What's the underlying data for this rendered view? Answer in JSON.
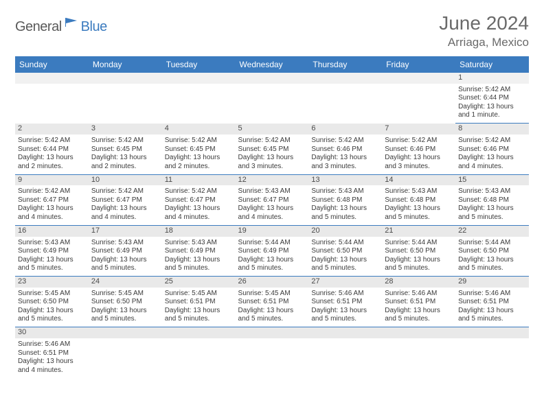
{
  "brand": {
    "part1": "General",
    "part2": "Blue"
  },
  "title": "June 2024",
  "location": "Arriaga, Mexico",
  "colors": {
    "header_bg": "#3b7bbf",
    "daynum_bg": "#e9e9e9",
    "border": "#3b7bbf"
  },
  "weekdays": [
    "Sunday",
    "Monday",
    "Tuesday",
    "Wednesday",
    "Thursday",
    "Friday",
    "Saturday"
  ],
  "weeks": [
    [
      null,
      null,
      null,
      null,
      null,
      null,
      {
        "n": "1",
        "sr": "Sunrise: 5:42 AM",
        "ss": "Sunset: 6:44 PM",
        "dl": "Daylight: 13 hours and 1 minute."
      }
    ],
    [
      {
        "n": "2",
        "sr": "Sunrise: 5:42 AM",
        "ss": "Sunset: 6:44 PM",
        "dl": "Daylight: 13 hours and 2 minutes."
      },
      {
        "n": "3",
        "sr": "Sunrise: 5:42 AM",
        "ss": "Sunset: 6:45 PM",
        "dl": "Daylight: 13 hours and 2 minutes."
      },
      {
        "n": "4",
        "sr": "Sunrise: 5:42 AM",
        "ss": "Sunset: 6:45 PM",
        "dl": "Daylight: 13 hours and 2 minutes."
      },
      {
        "n": "5",
        "sr": "Sunrise: 5:42 AM",
        "ss": "Sunset: 6:45 PM",
        "dl": "Daylight: 13 hours and 3 minutes."
      },
      {
        "n": "6",
        "sr": "Sunrise: 5:42 AM",
        "ss": "Sunset: 6:46 PM",
        "dl": "Daylight: 13 hours and 3 minutes."
      },
      {
        "n": "7",
        "sr": "Sunrise: 5:42 AM",
        "ss": "Sunset: 6:46 PM",
        "dl": "Daylight: 13 hours and 3 minutes."
      },
      {
        "n": "8",
        "sr": "Sunrise: 5:42 AM",
        "ss": "Sunset: 6:46 PM",
        "dl": "Daylight: 13 hours and 4 minutes."
      }
    ],
    [
      {
        "n": "9",
        "sr": "Sunrise: 5:42 AM",
        "ss": "Sunset: 6:47 PM",
        "dl": "Daylight: 13 hours and 4 minutes."
      },
      {
        "n": "10",
        "sr": "Sunrise: 5:42 AM",
        "ss": "Sunset: 6:47 PM",
        "dl": "Daylight: 13 hours and 4 minutes."
      },
      {
        "n": "11",
        "sr": "Sunrise: 5:42 AM",
        "ss": "Sunset: 6:47 PM",
        "dl": "Daylight: 13 hours and 4 minutes."
      },
      {
        "n": "12",
        "sr": "Sunrise: 5:43 AM",
        "ss": "Sunset: 6:47 PM",
        "dl": "Daylight: 13 hours and 4 minutes."
      },
      {
        "n": "13",
        "sr": "Sunrise: 5:43 AM",
        "ss": "Sunset: 6:48 PM",
        "dl": "Daylight: 13 hours and 5 minutes."
      },
      {
        "n": "14",
        "sr": "Sunrise: 5:43 AM",
        "ss": "Sunset: 6:48 PM",
        "dl": "Daylight: 13 hours and 5 minutes."
      },
      {
        "n": "15",
        "sr": "Sunrise: 5:43 AM",
        "ss": "Sunset: 6:48 PM",
        "dl": "Daylight: 13 hours and 5 minutes."
      }
    ],
    [
      {
        "n": "16",
        "sr": "Sunrise: 5:43 AM",
        "ss": "Sunset: 6:49 PM",
        "dl": "Daylight: 13 hours and 5 minutes."
      },
      {
        "n": "17",
        "sr": "Sunrise: 5:43 AM",
        "ss": "Sunset: 6:49 PM",
        "dl": "Daylight: 13 hours and 5 minutes."
      },
      {
        "n": "18",
        "sr": "Sunrise: 5:43 AM",
        "ss": "Sunset: 6:49 PM",
        "dl": "Daylight: 13 hours and 5 minutes."
      },
      {
        "n": "19",
        "sr": "Sunrise: 5:44 AM",
        "ss": "Sunset: 6:49 PM",
        "dl": "Daylight: 13 hours and 5 minutes."
      },
      {
        "n": "20",
        "sr": "Sunrise: 5:44 AM",
        "ss": "Sunset: 6:50 PM",
        "dl": "Daylight: 13 hours and 5 minutes."
      },
      {
        "n": "21",
        "sr": "Sunrise: 5:44 AM",
        "ss": "Sunset: 6:50 PM",
        "dl": "Daylight: 13 hours and 5 minutes."
      },
      {
        "n": "22",
        "sr": "Sunrise: 5:44 AM",
        "ss": "Sunset: 6:50 PM",
        "dl": "Daylight: 13 hours and 5 minutes."
      }
    ],
    [
      {
        "n": "23",
        "sr": "Sunrise: 5:45 AM",
        "ss": "Sunset: 6:50 PM",
        "dl": "Daylight: 13 hours and 5 minutes."
      },
      {
        "n": "24",
        "sr": "Sunrise: 5:45 AM",
        "ss": "Sunset: 6:50 PM",
        "dl": "Daylight: 13 hours and 5 minutes."
      },
      {
        "n": "25",
        "sr": "Sunrise: 5:45 AM",
        "ss": "Sunset: 6:51 PM",
        "dl": "Daylight: 13 hours and 5 minutes."
      },
      {
        "n": "26",
        "sr": "Sunrise: 5:45 AM",
        "ss": "Sunset: 6:51 PM",
        "dl": "Daylight: 13 hours and 5 minutes."
      },
      {
        "n": "27",
        "sr": "Sunrise: 5:46 AM",
        "ss": "Sunset: 6:51 PM",
        "dl": "Daylight: 13 hours and 5 minutes."
      },
      {
        "n": "28",
        "sr": "Sunrise: 5:46 AM",
        "ss": "Sunset: 6:51 PM",
        "dl": "Daylight: 13 hours and 5 minutes."
      },
      {
        "n": "29",
        "sr": "Sunrise: 5:46 AM",
        "ss": "Sunset: 6:51 PM",
        "dl": "Daylight: 13 hours and 5 minutes."
      }
    ],
    [
      {
        "n": "30",
        "sr": "Sunrise: 5:46 AM",
        "ss": "Sunset: 6:51 PM",
        "dl": "Daylight: 13 hours and 4 minutes."
      },
      null,
      null,
      null,
      null,
      null,
      null
    ]
  ]
}
